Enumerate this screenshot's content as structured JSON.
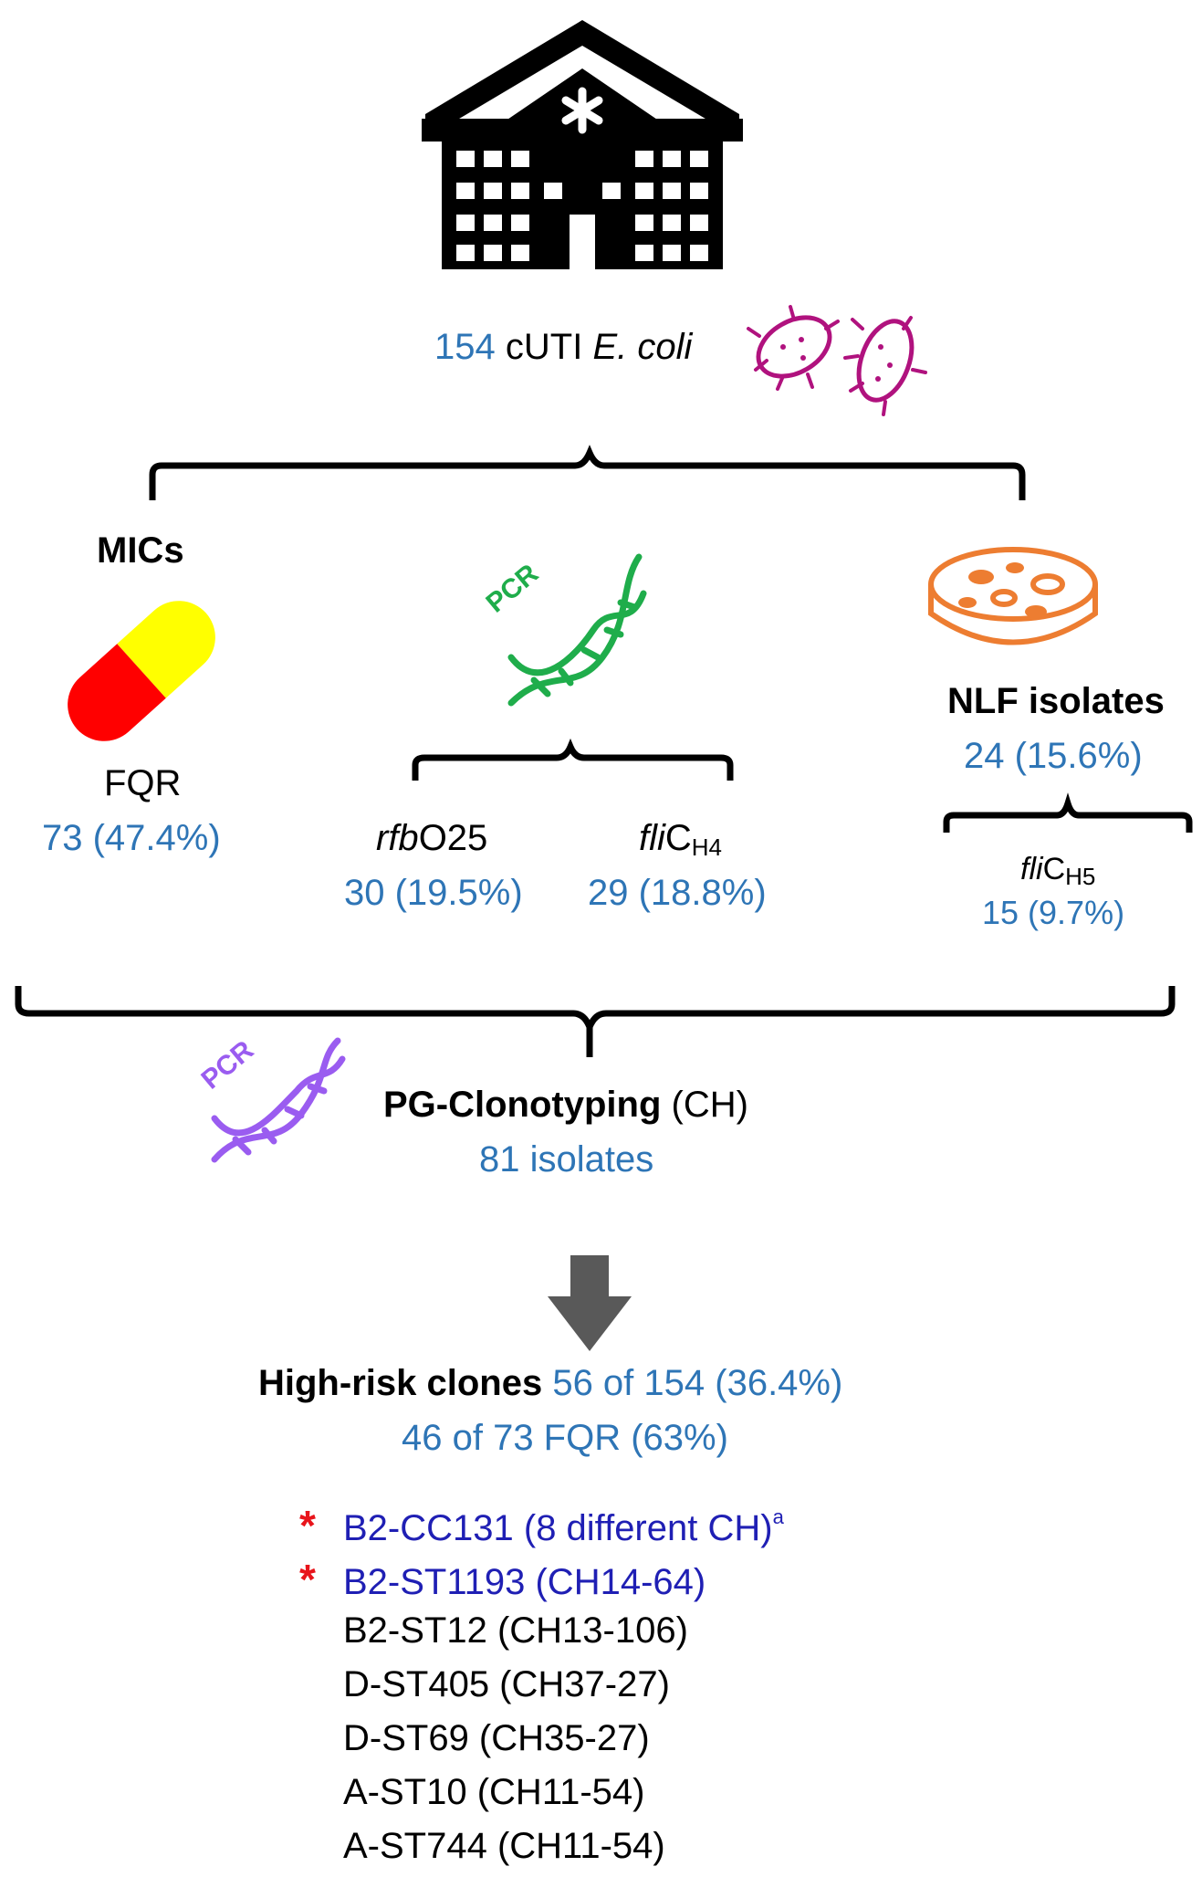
{
  "source": {
    "count": "154",
    "label": "cUTI",
    "organism": "E. coli"
  },
  "mics": {
    "title": "MICs",
    "fqr_label": "FQR",
    "fqr_value": "73 (47.4%)"
  },
  "pcr": {
    "icon_label": "PCR",
    "rfb_prefix": "rfb",
    "rfb_suffix": "O25",
    "rfb_value": "30 (19.5%)",
    "flic_prefix": "fli",
    "flic_main": "C",
    "flic_sub": "H4",
    "flic_value": "29 (18.8%)"
  },
  "nlf": {
    "title": "NLF isolates",
    "value": "24 (15.6%)",
    "flic_prefix": "fli",
    "flic_main": "C",
    "flic_sub": "H5",
    "flic_value": "15 (9.7%)"
  },
  "clonotyping": {
    "icon_label": "PCR",
    "title": "PG-Clonotyping",
    "title_suffix": "(CH)",
    "value": "81 isolates"
  },
  "high_risk": {
    "title": "High-risk clones",
    "value1": "56 of 154 (36.4%)",
    "value2": "46 of 73 FQR (63%)"
  },
  "clones": [
    {
      "text": "B2-CC131 (8 different CH)",
      "sup": "a",
      "starred": true,
      "color": "#1f1fb4"
    },
    {
      "text": "B2-ST1193 (CH14-64)",
      "sup": "",
      "starred": true,
      "color": "#1f1fb4"
    },
    {
      "text": "B2-ST12 (CH13-106)",
      "sup": "",
      "starred": false,
      "color": "#000000"
    },
    {
      "text": "D-ST405 (CH37-27)",
      "sup": "",
      "starred": false,
      "color": "#000000"
    },
    {
      "text": "D-ST69 (CH35-27)",
      "sup": "",
      "starred": false,
      "color": "#000000"
    },
    {
      "text": "A-ST10 (CH11-54)",
      "sup": "",
      "starred": false,
      "color": "#000000"
    },
    {
      "text": "A-ST744 (CH11-54)",
      "sup": "",
      "starred": false,
      "color": "#000000"
    }
  ],
  "colors": {
    "value_blue": "#2e75b6",
    "clone_navy": "#1f1fb4",
    "star_red": "#e8141b",
    "bacteria": "#b0127e",
    "dna_green": "#1fad4b",
    "dna_purple": "#9a5cf0",
    "petri_orange": "#ed7d31",
    "pill_yellow": "#ffff00",
    "pill_red": "#ff0000",
    "arrow_gray": "#595959"
  },
  "icons": {
    "hospital": "hospital-icon",
    "bacteria": "bacteria-icon",
    "pill": "capsule-icon",
    "dna_green": "dna-pcr-icon",
    "petri": "petri-dish-icon",
    "dna_purple": "dna-pcr-icon",
    "arrow": "down-arrow-icon"
  }
}
